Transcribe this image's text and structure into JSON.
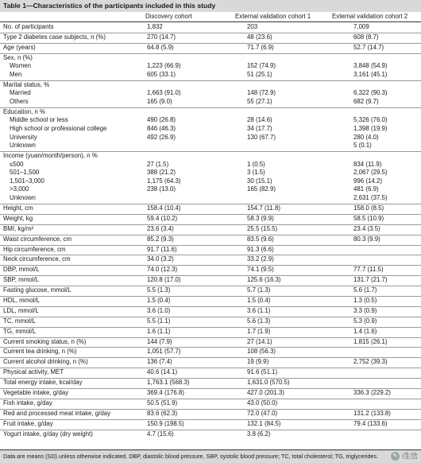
{
  "title": "Table 1—Characteristics of the participants included in this study",
  "columns": [
    "",
    "Discovery cohort",
    "External validation cohort 1",
    "External validation cohort 2"
  ],
  "groups": [
    [
      [
        "No. of participants",
        "1,832",
        "203",
        "7,009",
        false
      ]
    ],
    [
      [
        "Type 2 diabetes case subjects, n (%)",
        "270 (14.7)",
        "48 (23.6)",
        "608 (8.7)",
        false
      ]
    ],
    [
      [
        "Age (years)",
        "64.8 (5.9)",
        "71.7 (6.9)",
        "52.7 (14.7)",
        false
      ]
    ],
    [
      [
        "Sex, n (%)",
        "",
        "",
        "",
        false
      ],
      [
        "Women",
        "1,223 (66.9)",
        "152 (74.9)",
        "3,848 (54.9)",
        true
      ],
      [
        "Men",
        "605 (33.1)",
        "51 (25.1)",
        "3,161 (45.1)",
        true
      ]
    ],
    [
      [
        "Marital status, %",
        "",
        "",
        "",
        false
      ],
      [
        "Married",
        "1,663 (91.0)",
        "148 (72.9)",
        "6,322 (90.3)",
        true
      ],
      [
        "Others",
        "165 (9.0)",
        "55 (27.1)",
        "682 (9.7)",
        true
      ]
    ],
    [
      [
        "Education, n %",
        "",
        "",
        "",
        false
      ],
      [
        "Middle school or less",
        "490 (26.8)",
        "28 (14.6)",
        "5,326 (76.0)",
        true
      ],
      [
        "High school or professional college",
        "846 (46.3)",
        "34 (17.7)",
        "1,398 (19.9)",
        true
      ],
      [
        "University",
        "492 (26.9)",
        "130 (67.7)",
        "280 (4.0)",
        true
      ],
      [
        "Unknown",
        "",
        "",
        "5 (0.1)",
        true
      ]
    ],
    [
      [
        "Income (yuan/month/person), n %",
        "",
        "",
        "",
        false
      ],
      [
        "≤500",
        "27 (1.5)",
        "1 (0.5)",
        "834 (11.9)",
        true
      ],
      [
        "501–1,500",
        "388 (21.2)",
        "3 (1.5)",
        "2,067 (29.5)",
        true
      ],
      [
        "1,501–3,000",
        "1,175 (64.3)",
        "30 (15.1)",
        "996 (14.2)",
        true
      ],
      [
        ">3,000",
        "238 (13.0)",
        "165 (82.9)",
        "481 (6.9)",
        true
      ],
      [
        "Unknown",
        "",
        "",
        "2,631 (37.5)",
        true
      ]
    ],
    [
      [
        "Height, cm",
        "158.4 (10.4)",
        "154.7 (11.8)",
        "158.0 (8.5)",
        false
      ]
    ],
    [
      [
        "Weight, kg",
        "59.4 (10.2)",
        "58.3 (9.9)",
        "58.5 (10.9)",
        false
      ]
    ],
    [
      [
        "BMI, kg/m²",
        "23.6 (3.4)",
        "25.5 (15.5)",
        "23.4 (3.5)",
        false
      ]
    ],
    [
      [
        "Waist circumference, cm",
        "85.2 (9.3)",
        "83.5 (9.6)",
        "80.3 (9.9)",
        false
      ]
    ],
    [
      [
        "Hip circumference, cm",
        "91.7 (11.6)",
        "91.3 (6.6)",
        "",
        false
      ]
    ],
    [
      [
        "Neck circumference, cm",
        "34.0 (3.2)",
        "33.2 (2.9)",
        "",
        false
      ]
    ],
    [
      [
        "DBP, mmol/L",
        "74.0 (12.3)",
        "74.1 (9.5)",
        "77.7 (11.5)",
        false
      ]
    ],
    [
      [
        "SBP, mmol/L",
        "120.8 (17.0)",
        "125.6 (16.3)",
        "131.7 (21.7)",
        false
      ]
    ],
    [
      [
        "Fasting glucose, mmol/L",
        "5.5 (1.3)",
        "5.7 (1.3)",
        "5.6 (1.7)",
        false
      ]
    ],
    [
      [
        "HDL, mmol/L",
        "1.5 (0.4)",
        "1.5 (0.4)",
        "1.3 (0.5)",
        false
      ]
    ],
    [
      [
        "LDL, mmol/L",
        "3.6 (1.0)",
        "3.6 (1.1)",
        "3.3 (0.9)",
        false
      ]
    ],
    [
      [
        "TC, mmol/L",
        "5.5 (1.1)",
        "5.6 (1.3)",
        "5.3 (0.9)",
        false
      ]
    ],
    [
      [
        "TG, mmol/L",
        "1.6 (1.1)",
        "1.7 (1.9)",
        "1.4 (1.6)",
        false
      ]
    ],
    [
      [
        "Current smoking status, n (%)",
        "144 (7.9)",
        "27 (14.1)",
        "1,815 (26.1)",
        false
      ]
    ],
    [
      [
        "Current tea drinking, n (%)",
        "1,051 (57.7)",
        "108 (56.3)",
        "",
        false
      ]
    ],
    [
      [
        "Current alcohol drinking, n (%)",
        "136 (7.4)",
        "19 (9.9)",
        "2,752 (39.3)",
        false
      ]
    ],
    [
      [
        "Physical activity, MET",
        "40.6 (14.1)",
        "91.6 (51.1)",
        "",
        false
      ]
    ],
    [
      [
        "Total energy intake, kcal/day",
        "1,763.1 (568.3)",
        "1,631.0 (570.5)",
        "",
        false
      ]
    ],
    [
      [
        "Vegetable intake, g/day",
        "369.4 (176.8)",
        "427.0 (201.3)",
        "336.3 (229.2)",
        false
      ]
    ],
    [
      [
        "Fish intake, g/day",
        "50.5 (51.9)",
        "43.0 (50.0)",
        "",
        false
      ]
    ],
    [
      [
        "Red and processed meat intake, g/day",
        "83.6 (62.3)",
        "72.0 (47.0)",
        "131.2 (133.8)",
        false
      ]
    ],
    [
      [
        "Fruit intake, g/day",
        "150.9 (198.5)",
        "132.1 (84.5)",
        "79.4 (133.6)",
        false
      ]
    ],
    [
      [
        "Yogurt intake, g/day (dry weight)",
        "4.7 (15.6)",
        "3.8 (6.2)",
        "",
        false
      ]
    ]
  ],
  "footer": "Data are means (SD) unless otherwise indicated. DBP, diastolic blood pressure, SBP, systolic blood pressure; TC, total cholesterol; TG, triglycerides.",
  "watermark": "i生信"
}
